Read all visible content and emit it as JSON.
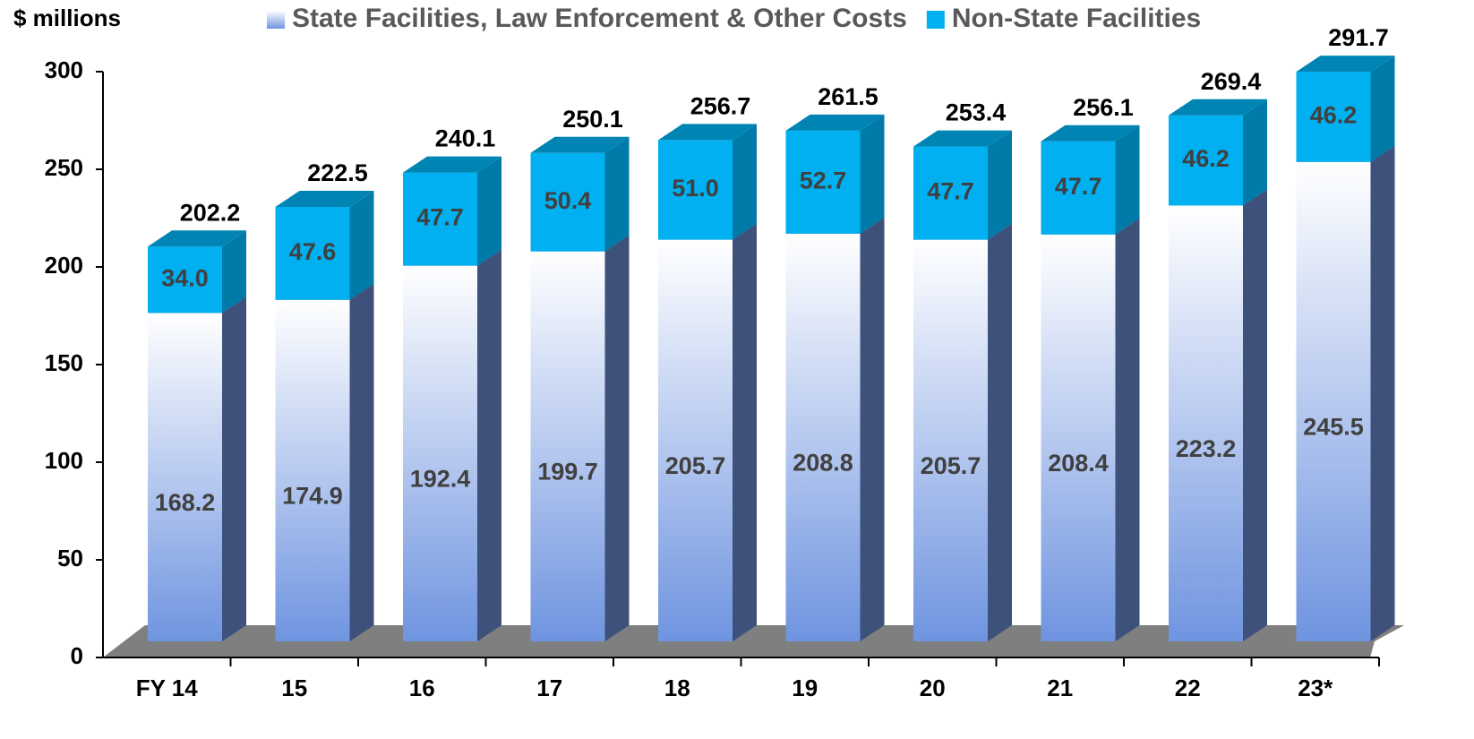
{
  "chart_data": {
    "type": "bar3d_stacked",
    "y_axis_label": "$ millions",
    "categories": [
      "FY 14",
      "15",
      "16",
      "17",
      "18",
      "19",
      "20",
      "21",
      "22",
      "23*"
    ],
    "series": [
      {
        "name": "State Facilities, Law Enforcement & Other Costs",
        "color": "#6f94e0",
        "values": [
          168.2,
          174.9,
          192.4,
          199.7,
          205.7,
          208.8,
          205.7,
          208.4,
          223.2,
          245.5
        ],
        "value_labels": [
          "168.2",
          "174.9",
          "192.4",
          "199.7",
          "205.7",
          "208.8",
          "205.7",
          "208.4",
          "223.2",
          "245.5"
        ]
      },
      {
        "name": "Non-State Facilities",
        "color": "#00b0f0",
        "values": [
          34.0,
          47.6,
          47.7,
          50.4,
          51.0,
          52.7,
          47.7,
          47.7,
          46.2,
          46.2
        ],
        "value_labels": [
          "34.0",
          "47.6",
          "47.7",
          "50.4",
          "51.0",
          "52.7",
          "47.7",
          "47.7",
          "46.2",
          "46.2"
        ]
      }
    ],
    "totals": [
      202.2,
      222.5,
      240.1,
      250.1,
      256.7,
      261.5,
      253.4,
      256.1,
      269.4,
      291.7
    ],
    "ylim": [
      0,
      300
    ],
    "yticks": [
      0,
      50,
      100,
      150,
      200,
      250,
      300
    ]
  }
}
